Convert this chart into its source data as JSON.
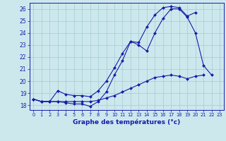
{
  "xlabel": "Graphe des températures (°c)",
  "hours": [
    0,
    1,
    2,
    3,
    4,
    5,
    6,
    7,
    8,
    9,
    10,
    11,
    12,
    13,
    14,
    15,
    16,
    17,
    18,
    19,
    20,
    21,
    22,
    23
  ],
  "line1": [
    18.5,
    18.3,
    18.3,
    18.3,
    18.2,
    18.1,
    18.1,
    17.9,
    18.3,
    19.1,
    20.5,
    21.7,
    23.3,
    23.0,
    22.5,
    24.0,
    25.2,
    26.0,
    26.0,
    25.3,
    24.0,
    21.3,
    20.5,
    null
  ],
  "line2": [
    18.5,
    18.3,
    18.3,
    19.2,
    18.9,
    18.8,
    18.8,
    18.7,
    19.2,
    20.0,
    21.1,
    22.3,
    23.3,
    23.2,
    24.5,
    25.5,
    26.1,
    26.2,
    26.1,
    25.4,
    25.7,
    null,
    null,
    null
  ],
  "line3": [
    18.5,
    18.3,
    18.3,
    18.3,
    18.3,
    18.3,
    18.3,
    18.3,
    18.4,
    18.6,
    18.8,
    19.1,
    19.4,
    19.7,
    20.0,
    20.3,
    20.4,
    20.5,
    20.4,
    20.2,
    20.4,
    20.5,
    null,
    null
  ],
  "bg_color": "#cde8ed",
  "grid_color": "#9fccd3",
  "line_color": "#1a1aaa",
  "ylim": [
    17.6,
    26.5
  ],
  "yticks": [
    18,
    19,
    20,
    21,
    22,
    23,
    24,
    25,
    26
  ],
  "markersize": 2.0
}
